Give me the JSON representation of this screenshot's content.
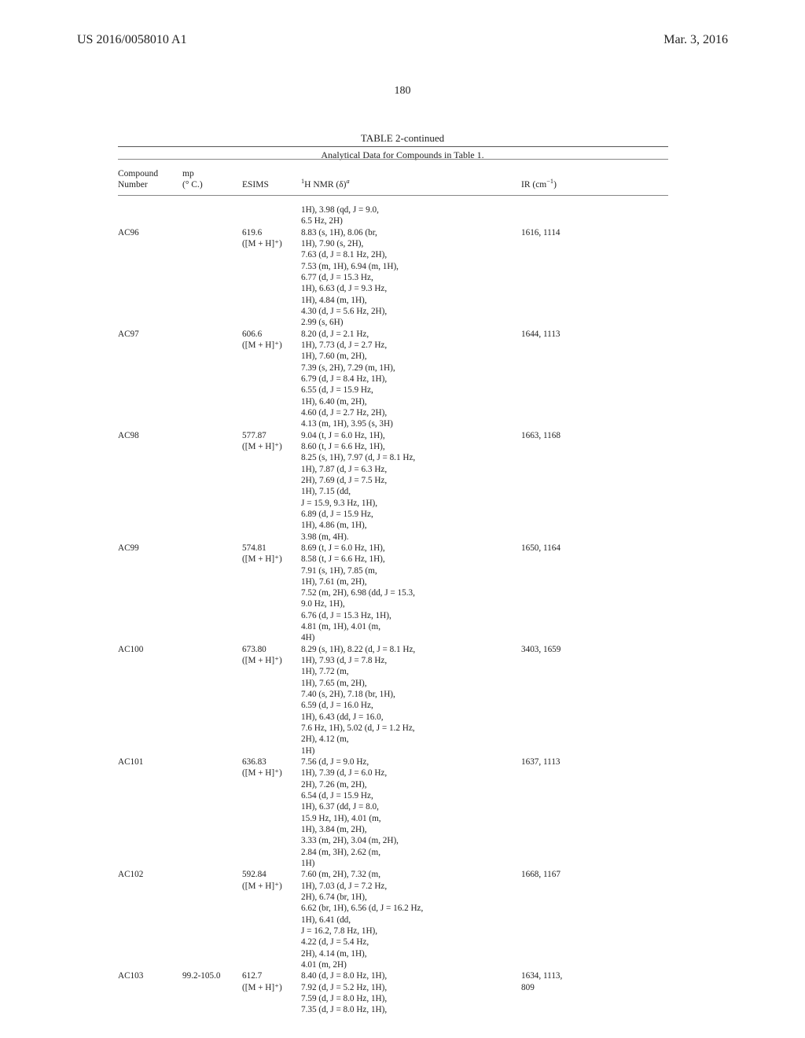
{
  "header": {
    "pub_no": "US 2016/0058010 A1",
    "pub_date": "Mar. 3, 2016"
  },
  "page_number": "180",
  "table": {
    "title": "TABLE 2-continued",
    "subtitle": "Analytical Data for Compounds in Table 1.",
    "col_headers": {
      "r1": {
        "c1": "Compound",
        "c2": "mp",
        "c3": "",
        "c4": "",
        "c5": ""
      },
      "r2": {
        "c1": "Number",
        "c2": "(° C.)",
        "c3": "ESIMS",
        "c4_pre": "",
        "c4_sup": "1",
        "c4_mid": "H NMR (δ)",
        "c4_supa": "a",
        "c5_pre": "IR (cm",
        "c5_sup": "−1",
        "c5_post": ")"
      }
    },
    "pre_nmr": "1H), 3.98 (qd, J = 9.0,\n6.5 Hz, 2H)",
    "entries": [
      {
        "compound": "AC96",
        "mp": "",
        "esims": "619.6\n([M + H]⁺)",
        "nmr": "8.83 (s, 1H), 8.06 (br,\n1H), 7.90 (s, 2H),\n7.63 (d, J = 8.1 Hz, 2H),\n7.53 (m, 1H), 6.94 (m, 1H),\n6.77 (d, J = 15.3 Hz,\n1H), 6.63 (d, J = 9.3 Hz,\n1H), 4.84 (m, 1H),\n4.30 (d, J = 5.6 Hz, 2H),\n2.99 (s, 6H)",
        "ir": "1616, 1114"
      },
      {
        "compound": "AC97",
        "mp": "",
        "esims": "606.6\n([M + H]⁺)",
        "nmr": "8.20 (d, J = 2.1 Hz,\n1H), 7.73 (d, J = 2.7 Hz,\n1H), 7.60 (m, 2H),\n7.39 (s, 2H), 7.29 (m, 1H),\n6.79 (d, J = 8.4 Hz, 1H),\n6.55 (d, J = 15.9 Hz,\n1H), 6.40 (m, 2H),\n4.60 (d, J = 2.7 Hz, 2H),\n4.13 (m, 1H), 3.95 (s, 3H)",
        "ir": "1644, 1113"
      },
      {
        "compound": "AC98",
        "mp": "",
        "esims": "577.87\n([M + H]⁺)",
        "nmr": "9.04 (t, J = 6.0 Hz, 1H),\n8.60 (t, J = 6.6 Hz, 1H),\n8.25 (s, 1H), 7.97 (d, J = 8.1 Hz,\n1H), 7.87 (d, J = 6.3 Hz,\n2H), 7.69 (d, J = 7.5 Hz,\n1H), 7.15 (dd,\nJ = 15.9, 9.3 Hz, 1H),\n6.89 (d, J = 15.9 Hz,\n1H), 4.86 (m, 1H),\n3.98 (m, 4H).",
        "ir": "1663, 1168"
      },
      {
        "compound": "AC99",
        "mp": "",
        "esims": "574.81\n([M + H]⁺)",
        "nmr": "8.69 (t, J = 6.0 Hz, 1H),\n8.58 (t, J = 6.6 Hz, 1H),\n7.91 (s, 1H), 7.85 (m,\n1H), 7.61 (m, 2H),\n7.52 (m, 2H), 6.98 (dd, J = 15.3,\n9.0 Hz, 1H),\n6.76 (d, J = 15.3 Hz, 1H),\n4.81 (m, 1H), 4.01 (m,\n4H)",
        "ir": "1650, 1164"
      },
      {
        "compound": "AC100",
        "mp": "",
        "esims": "673.80\n([M + H]⁺)",
        "nmr": "8.29 (s, 1H), 8.22 (d, J = 8.1 Hz,\n1H), 7.93 (d, J = 7.8 Hz,\n1H), 7.72 (m,\n1H), 7.65 (m, 2H),\n7.40 (s, 2H), 7.18 (br, 1H),\n6.59 (d, J = 16.0 Hz,\n1H), 6.43 (dd, J = 16.0,\n7.6 Hz, 1H), 5.02 (d, J = 1.2 Hz,\n2H), 4.12 (m,\n1H)",
        "ir": "3403, 1659"
      },
      {
        "compound": "AC101",
        "mp": "",
        "esims": "636.83\n([M + H]⁺)",
        "nmr": "7.56 (d, J = 9.0 Hz,\n1H), 7.39 (d, J = 6.0 Hz,\n2H), 7.26 (m, 2H),\n6.54 (d, J = 15.9 Hz,\n1H), 6.37 (dd, J = 8.0,\n15.9 Hz, 1H), 4.01 (m,\n1H), 3.84 (m, 2H),\n3.33 (m, 2H), 3.04 (m, 2H),\n2.84 (m, 3H), 2.62 (m,\n1H)",
        "ir": "1637, 1113"
      },
      {
        "compound": "AC102",
        "mp": "",
        "esims": "592.84\n([M + H]⁺)",
        "nmr": "7.60 (m, 2H), 7.32 (m,\n1H), 7.03 (d, J = 7.2 Hz,\n2H), 6.74 (br, 1H),\n6.62 (br, 1H), 6.56 (d, J = 16.2 Hz,\n1H), 6.41 (dd,\nJ = 16.2, 7.8 Hz, 1H),\n4.22 (d, J = 5.4 Hz,\n2H), 4.14 (m, 1H),\n4.01 (m, 2H)",
        "ir": "1668, 1167"
      },
      {
        "compound": "AC103",
        "mp": "99.2-105.0",
        "esims": "612.7\n([M + H]⁺)",
        "nmr": "8.40 (d, J = 8.0 Hz, 1H),\n7.92 (d, J = 5.2 Hz, 1H),\n7.59 (d, J = 8.0 Hz, 1H),\n7.35 (d, J = 8.0 Hz, 1H),",
        "ir": "1634, 1113,\n809"
      }
    ]
  }
}
